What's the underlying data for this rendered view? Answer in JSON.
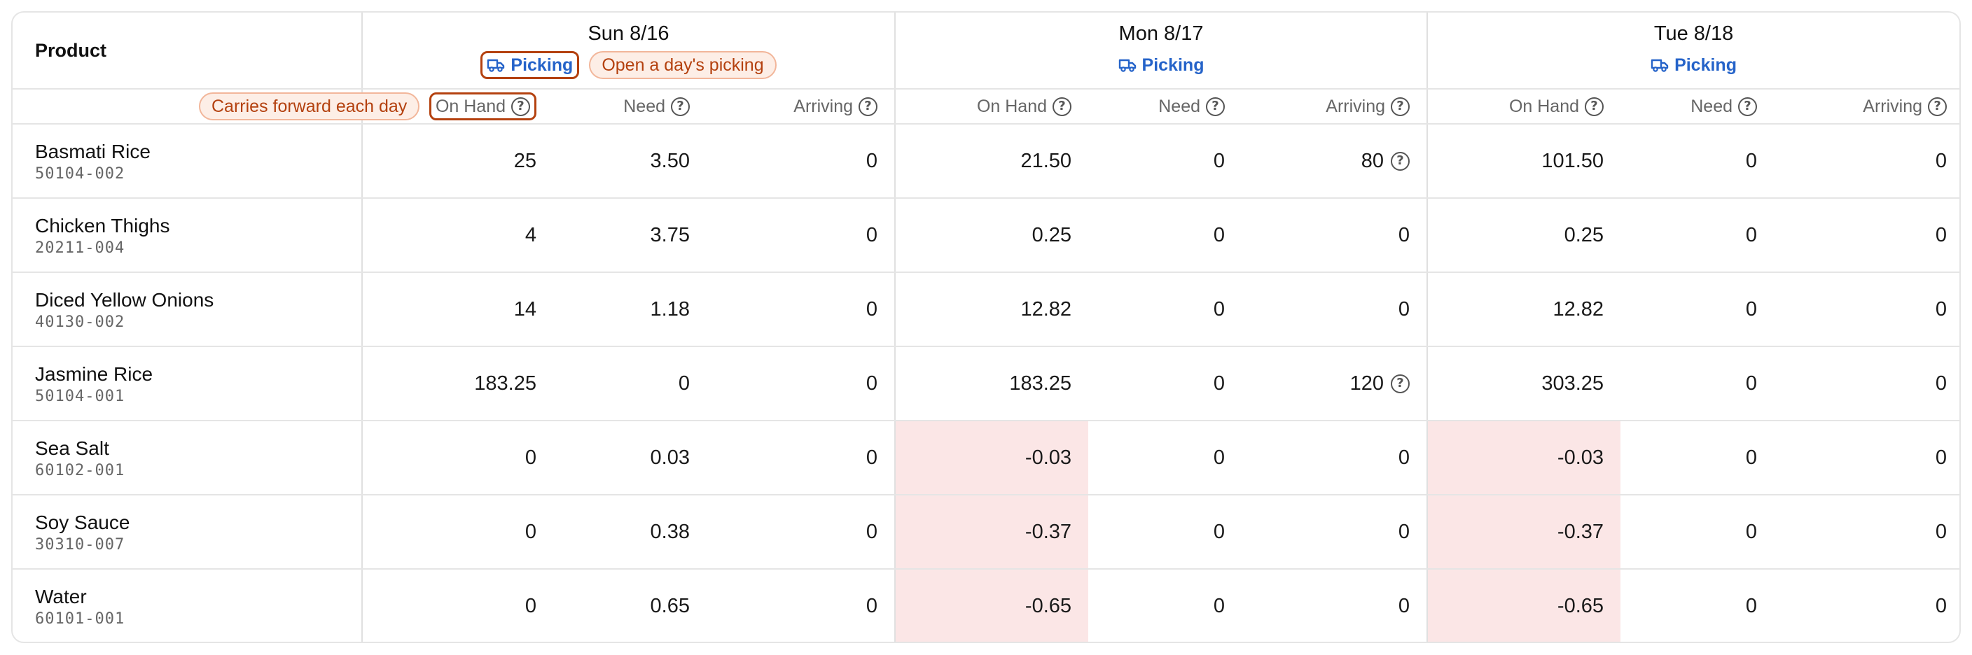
{
  "header": {
    "product_label": "Product",
    "callout_carries": "Carries forward each day",
    "callout_open": "Open a day's picking",
    "help_glyph": "?"
  },
  "days": [
    {
      "title": "Sun 8/16",
      "picking_label": "Picking"
    },
    {
      "title": "Mon 8/17",
      "picking_label": "Picking"
    },
    {
      "title": "Tue 8/18",
      "picking_label": "Picking"
    }
  ],
  "columns": [
    "On Hand",
    "Need",
    "Arriving"
  ],
  "rows": [
    {
      "name": "Basmati Rice",
      "sku": "50104-002",
      "values": [
        "25",
        "3.50",
        "0",
        "21.50",
        "0",
        "80",
        "101.50",
        "0",
        "0"
      ]
    },
    {
      "name": "Chicken Thighs",
      "sku": "20211-004",
      "values": [
        "4",
        "3.75",
        "0",
        "0.25",
        "0",
        "0",
        "0.25",
        "0",
        "0"
      ]
    },
    {
      "name": "Diced Yellow Onions",
      "sku": "40130-002",
      "values": [
        "14",
        "1.18",
        "0",
        "12.82",
        "0",
        "0",
        "12.82",
        "0",
        "0"
      ]
    },
    {
      "name": "Jasmine Rice",
      "sku": "50104-001",
      "values": [
        "183.25",
        "0",
        "0",
        "183.25",
        "0",
        "120",
        "303.25",
        "0",
        "0"
      ]
    },
    {
      "name": "Sea Salt",
      "sku": "60102-001",
      "values": [
        "0",
        "0.03",
        "0",
        "-0.03",
        "0",
        "0",
        "-0.03",
        "0",
        "0"
      ]
    },
    {
      "name": "Soy Sauce",
      "sku": "30310-007",
      "values": [
        "0",
        "0.38",
        "0",
        "-0.37",
        "0",
        "0",
        "-0.37",
        "0",
        "0"
      ]
    },
    {
      "name": "Water",
      "sku": "60101-001",
      "values": [
        "0",
        "0.65",
        "0",
        "-0.65",
        "0",
        "0",
        "-0.65",
        "0",
        "0"
      ]
    }
  ],
  "colors": {
    "accent_blue": "#2563c9",
    "highlight_orange": "#b4410f",
    "negative_red": "#c62828",
    "negative_bg": "#fbe6e6"
  }
}
